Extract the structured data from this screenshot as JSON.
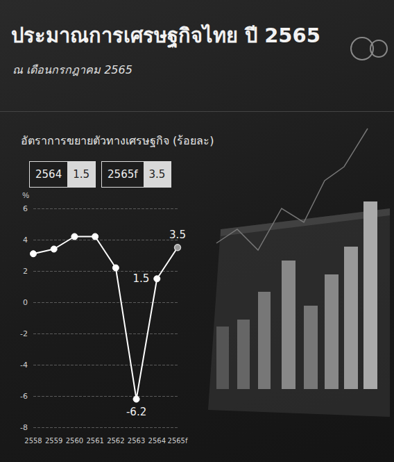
{
  "chart_data": {
    "type": "line",
    "title": "ประมาณการเศรษฐกิจไทย ปี 2565",
    "subtitle": "ณ เดือนกรกฎาคม 2565",
    "y_title": "อัตราการขยายตัวทางเศรษฐกิจ (ร้อยละ)",
    "y_unit": "%",
    "highlights": [
      {
        "label": "2564",
        "value": 1.5
      },
      {
        "label": "2565f",
        "value": 3.5
      }
    ],
    "categories": [
      "2558",
      "2559",
      "2560",
      "2561",
      "2562",
      "2563",
      "2564",
      "2565f"
    ],
    "values": [
      3.1,
      3.4,
      4.2,
      4.2,
      2.2,
      -6.2,
      1.5,
      3.5
    ],
    "value_labels": [
      null,
      null,
      null,
      null,
      null,
      "-6.2",
      "1.5",
      "3.5"
    ],
    "color": "#ffffff",
    "marker": "circle",
    "ylim": [
      -8,
      6
    ],
    "yticks": [
      -8,
      -6,
      -4,
      -2,
      0,
      2,
      4,
      6
    ],
    "grid": true
  }
}
